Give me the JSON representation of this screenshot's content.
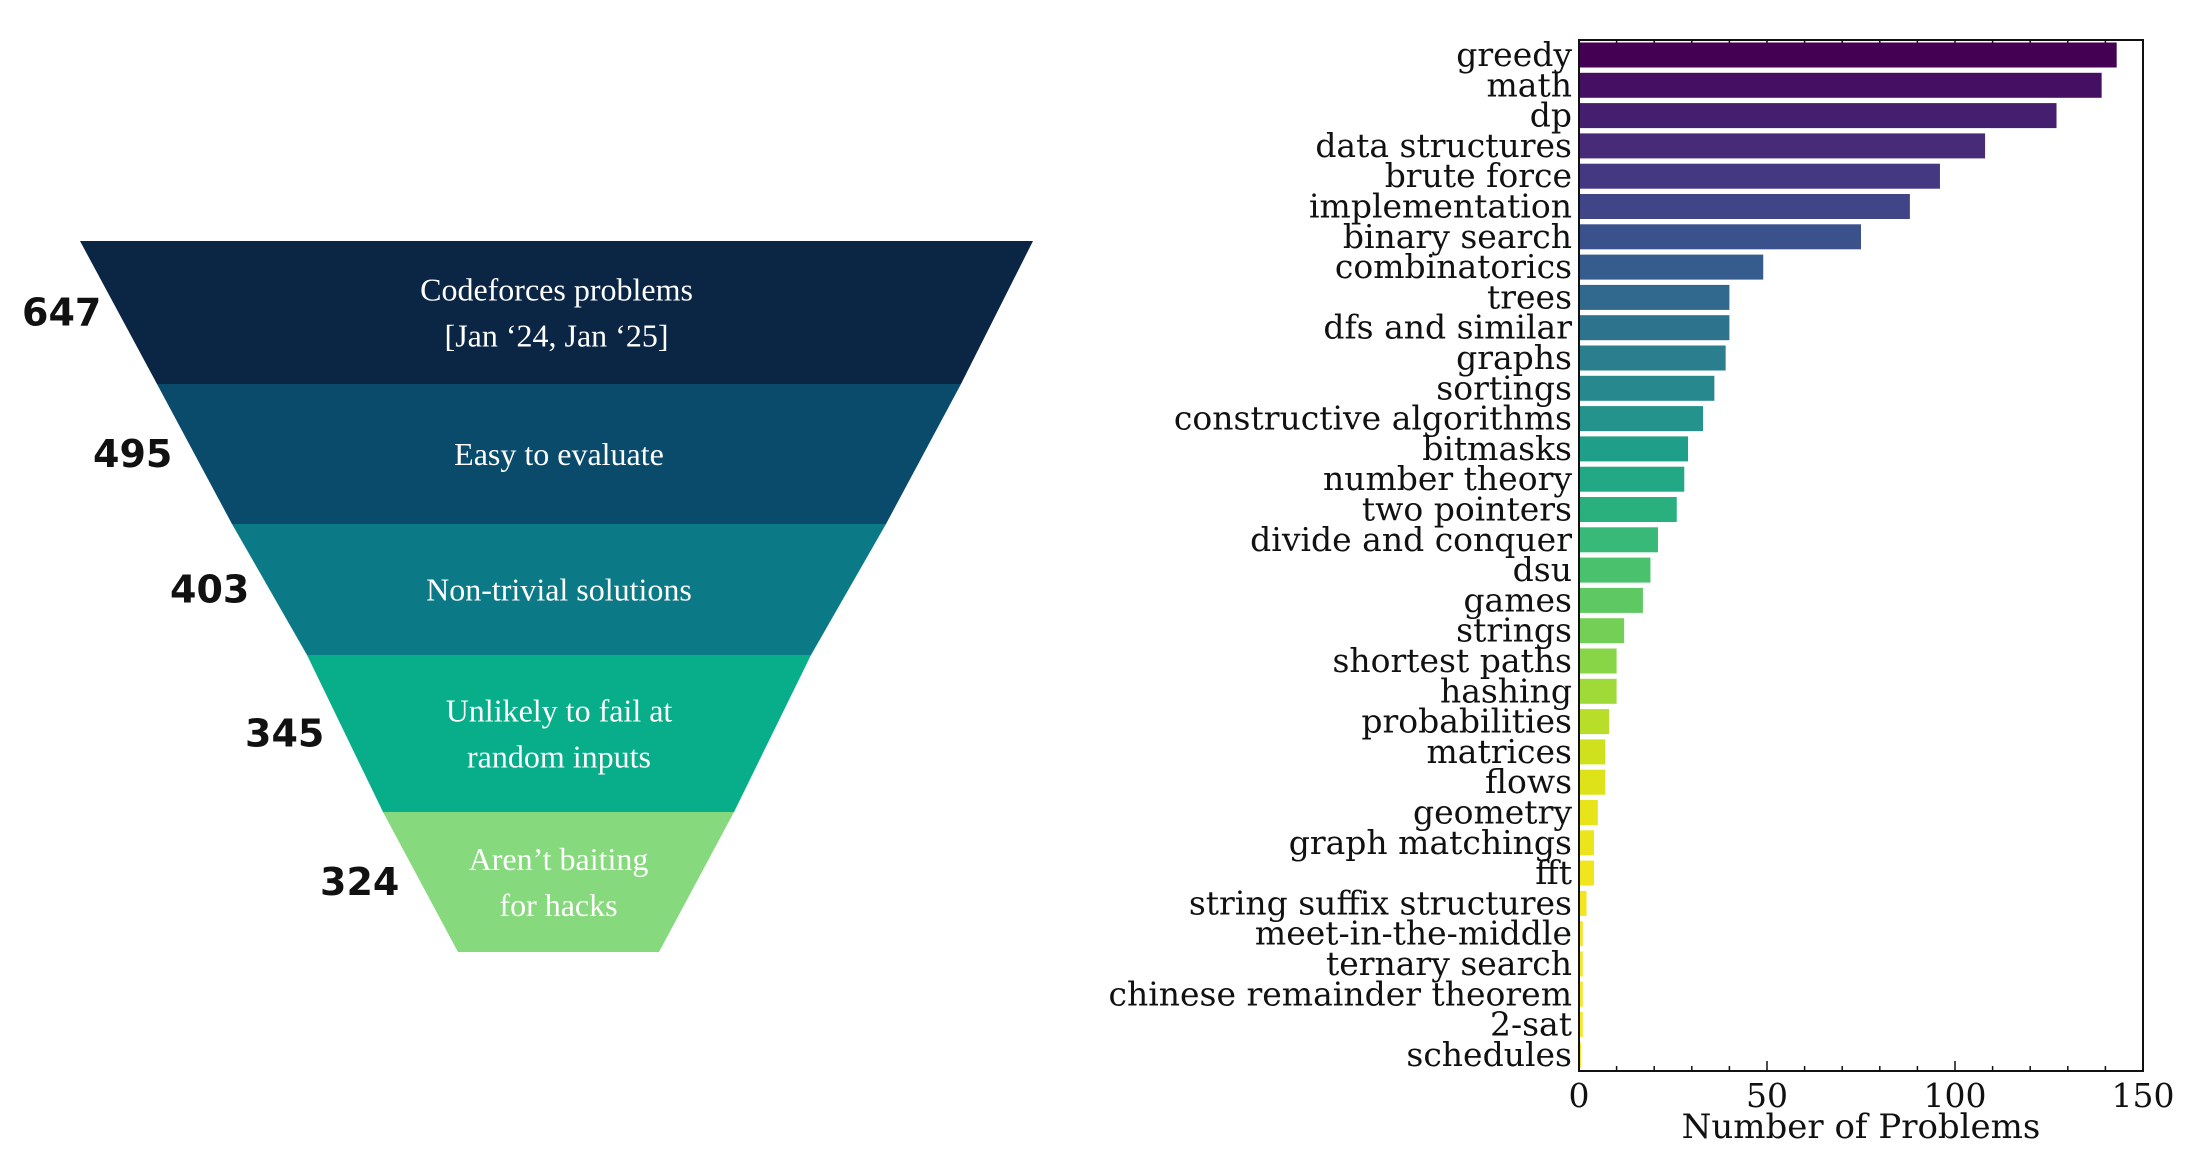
{
  "funnel": {
    "type": "funnel",
    "stages": [
      {
        "count": "647",
        "label_lines": [
          "Codeforces problems",
          "[Jan ‘24, Jan ‘25]"
        ],
        "color": "#0b2545"
      },
      {
        "count": "495",
        "label_lines": [
          "Easy to evaluate"
        ],
        "color": "#0a4a6b"
      },
      {
        "count": "403",
        "label_lines": [
          "Non-trivial solutions"
        ],
        "color": "#0b7a86"
      },
      {
        "count": "345",
        "label_lines": [
          "Unlikely to fail at",
          "random inputs"
        ],
        "color": "#08ad8a"
      },
      {
        "count": "324",
        "label_lines": [
          "Aren’t baiting",
          "for hacks"
        ],
        "color": "#86d97c"
      }
    ]
  },
  "chart_data": {
    "type": "bar",
    "orientation": "horizontal",
    "categories": [
      "greedy",
      "math",
      "dp",
      "data structures",
      "brute force",
      "implementation",
      "binary search",
      "combinatorics",
      "trees",
      "dfs and similar",
      "graphs",
      "sortings",
      "constructive algorithms",
      "bitmasks",
      "number theory",
      "two pointers",
      "divide and conquer",
      "dsu",
      "games",
      "strings",
      "shortest paths",
      "hashing",
      "probabilities",
      "matrices",
      "flows",
      "geometry",
      "graph matchings",
      "fft",
      "string suffix structures",
      "meet-in-the-middle",
      "ternary search",
      "chinese remainder theorem",
      "2-sat",
      "schedules"
    ],
    "values": [
      143,
      139,
      127,
      108,
      96,
      88,
      75,
      49,
      40,
      40,
      39,
      36,
      33,
      29,
      28,
      26,
      21,
      19,
      17,
      12,
      10,
      10,
      8,
      7,
      7,
      5,
      4,
      4,
      2,
      1,
      1,
      1,
      1,
      0.5
    ],
    "colors": [
      "#440154",
      "#450f63",
      "#461e70",
      "#472b79",
      "#443883",
      "#404588",
      "#3b518b",
      "#365c8d",
      "#31688e",
      "#2e738e",
      "#2a7e8e",
      "#27898e",
      "#24938b",
      "#1f9e89",
      "#22a884",
      "#2ab07e",
      "#38b977",
      "#4ac16d",
      "#5ec962",
      "#73cf55",
      "#89d548",
      "#a0da39",
      "#b8de29",
      "#cfe11c",
      "#dde318",
      "#e7e419",
      "#ede51b",
      "#f1e51d",
      "#f3e61f",
      "#f5e621",
      "#f6e723",
      "#f7e724",
      "#f8e725",
      "#fde725"
    ],
    "xlabel": "Number of Problems",
    "ylabel": "",
    "xlim": [
      0,
      150
    ],
    "xticks": [
      "0",
      "50",
      "100",
      "150"
    ],
    "grid": false
  }
}
